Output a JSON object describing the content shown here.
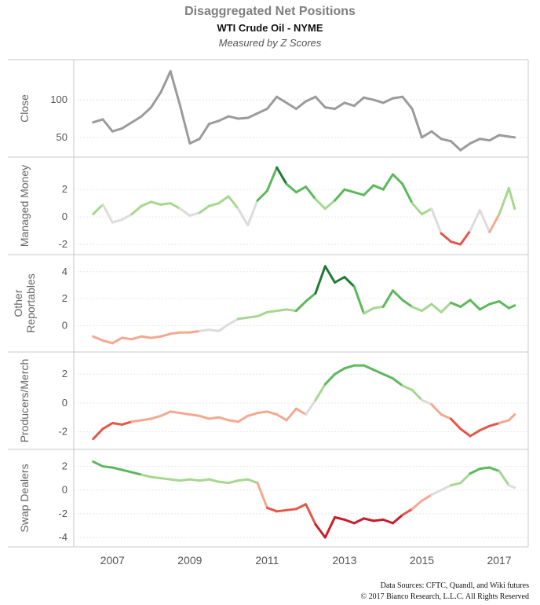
{
  "header": {
    "title": "Disaggregated Net Positions",
    "subtitle": "WTI Crude Oil - NYME",
    "note": "Measured by Z Scores"
  },
  "credits": {
    "line1": "Data Sources: CFTC, Quandl, and Wiki futures",
    "line2": "© 2017 Bianco Research, L.L.C. All Rights Reserved"
  },
  "colors": {
    "close": "#9b9b9b",
    "positive_strong": "#1e7b34",
    "positive_mid": "#5cb85c",
    "positive_light": "#a6d78f",
    "neutral": "#dcdcdc",
    "negative_light": "#f4a88f",
    "negative_mid": "#e5564a",
    "negative_strong": "#c91d2b"
  },
  "chart_data": {
    "type": "line",
    "x_axis": {
      "ticks": [
        "2007",
        "2009",
        "2011",
        "2013",
        "2015",
        "2017"
      ],
      "range": [
        2006.0,
        2017.75
      ]
    },
    "panels": [
      {
        "name": "Close",
        "ylim": [
          30,
          145
        ],
        "yticks": [
          "50",
          "100"
        ],
        "color_mode": "gray",
        "x": [
          2006.5,
          2006.75,
          2007.0,
          2007.25,
          2007.5,
          2007.75,
          2008.0,
          2008.25,
          2008.5,
          2008.75,
          2009.0,
          2009.25,
          2009.5,
          2009.75,
          2010.0,
          2010.25,
          2010.5,
          2010.75,
          2011.0,
          2011.25,
          2011.5,
          2011.75,
          2012.0,
          2012.25,
          2012.5,
          2012.75,
          2013.0,
          2013.25,
          2013.5,
          2013.75,
          2014.0,
          2014.25,
          2014.5,
          2014.75,
          2015.0,
          2015.25,
          2015.5,
          2015.75,
          2016.0,
          2016.25,
          2016.5,
          2016.75,
          2017.0,
          2017.25,
          2017.4
        ],
        "values": [
          70,
          74,
          58,
          62,
          70,
          78,
          90,
          110,
          138,
          92,
          42,
          48,
          68,
          72,
          78,
          75,
          76,
          82,
          88,
          104,
          96,
          88,
          98,
          104,
          90,
          88,
          96,
          92,
          103,
          100,
          96,
          102,
          104,
          88,
          50,
          58,
          48,
          45,
          33,
          42,
          48,
          46,
          53,
          51,
          50
        ]
      },
      {
        "name": "Managed Money",
        "ylim": [
          -2.4,
          3.9
        ],
        "yticks": [
          "-2",
          "0",
          "2"
        ],
        "color_mode": "diverging",
        "x": [
          2006.5,
          2006.75,
          2007.0,
          2007.25,
          2007.5,
          2007.75,
          2008.0,
          2008.25,
          2008.5,
          2008.75,
          2009.0,
          2009.25,
          2009.5,
          2009.75,
          2010.0,
          2010.25,
          2010.5,
          2010.75,
          2011.0,
          2011.25,
          2011.5,
          2011.75,
          2012.0,
          2012.25,
          2012.5,
          2012.75,
          2013.0,
          2013.25,
          2013.5,
          2013.75,
          2014.0,
          2014.25,
          2014.5,
          2014.75,
          2015.0,
          2015.25,
          2015.5,
          2015.75,
          2016.0,
          2016.25,
          2016.5,
          2016.75,
          2017.0,
          2017.25,
          2017.4
        ],
        "values": [
          0.2,
          0.9,
          -0.4,
          -0.2,
          0.2,
          0.8,
          1.1,
          0.9,
          1.0,
          0.6,
          0.1,
          0.3,
          0.8,
          1.0,
          1.5,
          0.6,
          -0.6,
          1.2,
          1.9,
          3.6,
          2.4,
          1.8,
          2.2,
          1.3,
          0.6,
          1.2,
          2.0,
          1.8,
          1.6,
          2.3,
          2.0,
          3.1,
          2.4,
          1.0,
          0.2,
          0.6,
          -1.2,
          -1.8,
          -2.0,
          -1.0,
          0.5,
          -1.1,
          0.2,
          2.1,
          0.6
        ]
      },
      {
        "name": "Other Reportables",
        "ylim": [
          -1.6,
          4.8
        ],
        "yticks": [
          "0",
          "2",
          "4"
        ],
        "color_mode": "diverging",
        "x": [
          2006.5,
          2006.75,
          2007.0,
          2007.25,
          2007.5,
          2007.75,
          2008.0,
          2008.25,
          2008.5,
          2008.75,
          2009.0,
          2009.25,
          2009.5,
          2009.75,
          2010.0,
          2010.25,
          2010.5,
          2010.75,
          2011.0,
          2011.25,
          2011.5,
          2011.75,
          2012.0,
          2012.25,
          2012.5,
          2012.75,
          2013.0,
          2013.25,
          2013.5,
          2013.75,
          2014.0,
          2014.25,
          2014.5,
          2014.75,
          2015.0,
          2015.25,
          2015.5,
          2015.75,
          2016.0,
          2016.25,
          2016.5,
          2016.75,
          2017.0,
          2017.25,
          2017.4
        ],
        "values": [
          -0.8,
          -1.1,
          -1.3,
          -0.9,
          -1.0,
          -0.8,
          -0.9,
          -0.8,
          -0.6,
          -0.5,
          -0.5,
          -0.4,
          -0.3,
          -0.4,
          0.1,
          0.5,
          0.6,
          0.7,
          1.0,
          1.1,
          1.2,
          1.1,
          1.8,
          2.4,
          4.4,
          3.2,
          3.6,
          2.9,
          0.9,
          1.3,
          1.4,
          2.6,
          1.9,
          1.4,
          1.1,
          1.6,
          1.0,
          1.7,
          1.4,
          1.9,
          1.2,
          1.6,
          1.8,
          1.3,
          1.5
        ]
      },
      {
        "name": "Producers/Merch",
        "ylim": [
          -2.9,
          3.1
        ],
        "yticks": [
          "-2",
          "0",
          "2"
        ],
        "color_mode": "diverging",
        "x": [
          2006.5,
          2006.75,
          2007.0,
          2007.25,
          2007.5,
          2007.75,
          2008.0,
          2008.25,
          2008.5,
          2008.75,
          2009.0,
          2009.25,
          2009.5,
          2009.75,
          2010.0,
          2010.25,
          2010.5,
          2010.75,
          2011.0,
          2011.25,
          2011.5,
          2011.75,
          2012.0,
          2012.25,
          2012.5,
          2012.75,
          2013.0,
          2013.25,
          2013.5,
          2013.75,
          2014.0,
          2014.25,
          2014.5,
          2014.75,
          2015.0,
          2015.25,
          2015.5,
          2015.75,
          2016.0,
          2016.25,
          2016.5,
          2016.75,
          2017.0,
          2017.25,
          2017.4
        ],
        "values": [
          -2.5,
          -1.8,
          -1.4,
          -1.5,
          -1.3,
          -1.2,
          -1.1,
          -0.9,
          -0.6,
          -0.7,
          -0.8,
          -0.9,
          -1.1,
          -1.0,
          -1.2,
          -1.3,
          -0.9,
          -0.7,
          -0.6,
          -0.8,
          -1.2,
          -0.4,
          -0.8,
          0.2,
          1.3,
          2.0,
          2.4,
          2.6,
          2.6,
          2.3,
          2.0,
          1.7,
          1.2,
          0.9,
          0.2,
          -0.1,
          -0.8,
          -1.1,
          -1.8,
          -2.3,
          -1.9,
          -1.6,
          -1.4,
          -1.2,
          -0.8
        ]
      },
      {
        "name": "Swap Dealers",
        "ylim": [
          -4.4,
          2.9
        ],
        "yticks": [
          "-4",
          "-2",
          "0",
          "2"
        ],
        "color_mode": "diverging",
        "x": [
          2006.5,
          2006.75,
          2007.0,
          2007.25,
          2007.5,
          2007.75,
          2008.0,
          2008.25,
          2008.5,
          2008.75,
          2009.0,
          2009.25,
          2009.5,
          2009.75,
          2010.0,
          2010.25,
          2010.5,
          2010.75,
          2011.0,
          2011.25,
          2011.5,
          2011.75,
          2012.0,
          2012.25,
          2012.5,
          2012.75,
          2013.0,
          2013.25,
          2013.5,
          2013.75,
          2014.0,
          2014.25,
          2014.5,
          2014.75,
          2015.0,
          2015.25,
          2015.5,
          2015.75,
          2016.0,
          2016.25,
          2016.5,
          2016.75,
          2017.0,
          2017.25,
          2017.4
        ],
        "values": [
          2.4,
          2.0,
          1.9,
          1.7,
          1.5,
          1.3,
          1.1,
          1.0,
          0.9,
          0.8,
          0.9,
          0.8,
          0.9,
          0.7,
          0.6,
          0.8,
          0.9,
          0.6,
          -1.5,
          -1.8,
          -1.7,
          -1.6,
          -1.2,
          -2.9,
          -4.0,
          -2.3,
          -2.5,
          -2.8,
          -2.4,
          -2.6,
          -2.5,
          -2.8,
          -2.1,
          -1.6,
          -0.9,
          -0.4,
          0.0,
          0.4,
          0.6,
          1.4,
          1.8,
          1.9,
          1.6,
          0.4,
          0.2
        ]
      }
    ]
  }
}
